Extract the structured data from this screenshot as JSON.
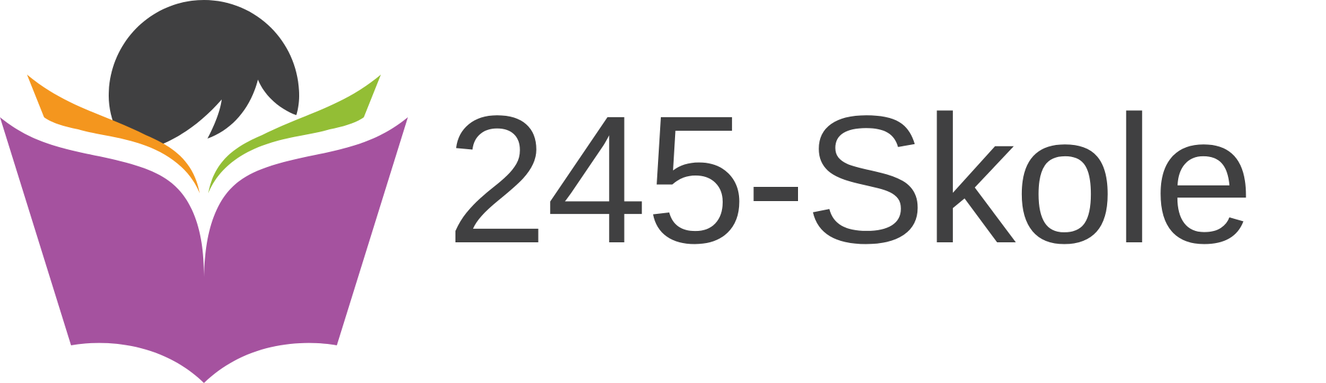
{
  "brand": {
    "name": "245-Skole",
    "colors": {
      "text": "#404041",
      "head": "#404041",
      "book": "#a5529f",
      "left_wing": "#f4961e",
      "right_wing": "#93be35"
    },
    "icon": "reader-with-open-book-logo"
  }
}
